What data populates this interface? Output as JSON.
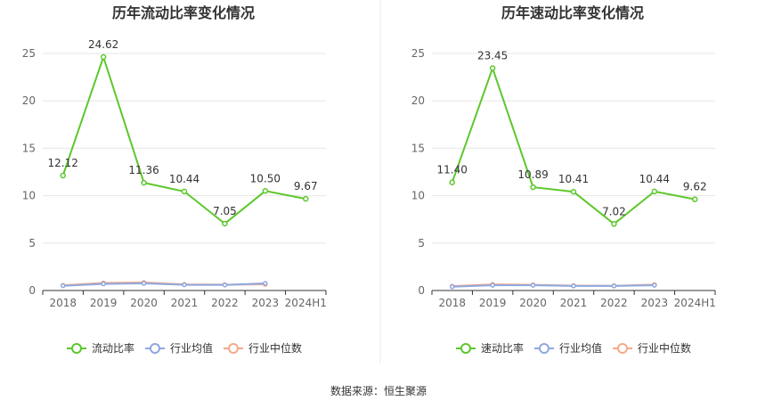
{
  "colors": {
    "main": "#5dc72c",
    "avg": "#8fa8e0",
    "median": "#f4a98a",
    "grid": "#e6e6e6",
    "axis": "#333333",
    "divider": "#e9e9e9"
  },
  "legend_items": [
    "行业均值",
    "行业中位数"
  ],
  "source": "数据来源：恒生聚源",
  "chart_data": [
    {
      "type": "line",
      "title": "历年流动比率变化情况",
      "categories": [
        "2018",
        "2019",
        "2020",
        "2021",
        "2022",
        "2023",
        "2024H1"
      ],
      "ylim": [
        0,
        25
      ],
      "yticks": [
        0,
        5,
        10,
        15,
        20,
        25
      ],
      "grid": true,
      "legend_position": "bottom",
      "series": [
        {
          "name": "流动比率",
          "values": [
            12.12,
            24.62,
            11.36,
            10.44,
            7.05,
            10.5,
            9.67
          ],
          "labels": [
            "12.12",
            "24.62",
            "11.36",
            "10.44",
            "7.05",
            "10.50",
            "9.67"
          ]
        },
        {
          "name": "行业均值",
          "values": [
            0.5,
            0.7,
            0.75,
            0.6,
            0.58,
            0.75,
            null
          ]
        },
        {
          "name": "行业中位数",
          "values": [
            0.55,
            0.8,
            0.85,
            0.65,
            0.62,
            0.65,
            null
          ]
        }
      ]
    },
    {
      "type": "line",
      "title": "历年速动比率变化情况",
      "categories": [
        "2018",
        "2019",
        "2020",
        "2021",
        "2022",
        "2023",
        "2024H1"
      ],
      "ylim": [
        0,
        25
      ],
      "yticks": [
        0,
        5,
        10,
        15,
        20,
        25
      ],
      "grid": true,
      "legend_position": "bottom",
      "series": [
        {
          "name": "速动比率",
          "values": [
            11.4,
            23.45,
            10.89,
            10.41,
            7.02,
            10.44,
            9.62
          ],
          "labels": [
            "11.40",
            "23.45",
            "10.89",
            "10.41",
            "7.02",
            "10.44",
            "9.62"
          ]
        },
        {
          "name": "行业均值",
          "values": [
            0.4,
            0.55,
            0.55,
            0.48,
            0.48,
            0.55,
            null
          ]
        },
        {
          "name": "行业中位数",
          "values": [
            0.45,
            0.65,
            0.6,
            0.52,
            0.5,
            0.62,
            null
          ]
        }
      ]
    }
  ]
}
